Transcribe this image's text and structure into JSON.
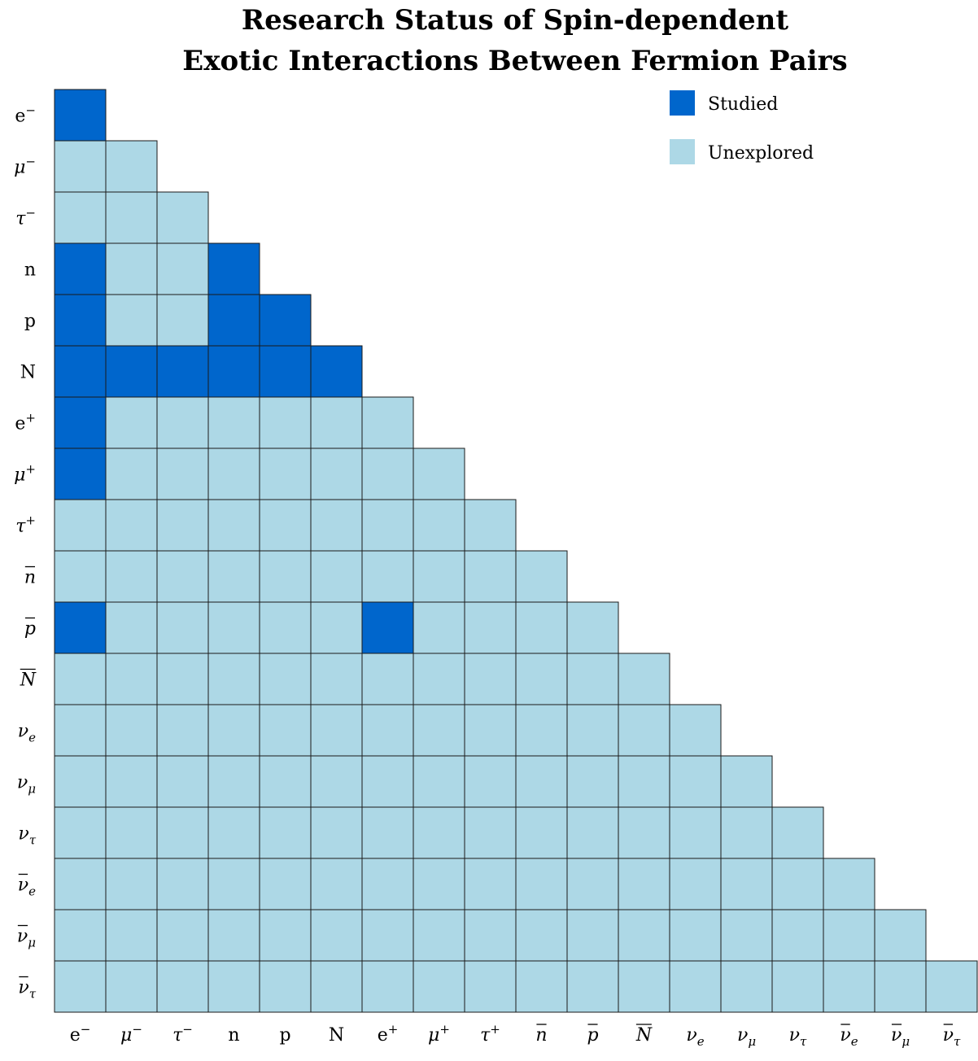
{
  "chart_data": {
    "type": "heatmap",
    "title": [
      "Research Status of Spin-dependent",
      "Exotic Interactions Between Fermion Pairs"
    ],
    "labels": [
      {
        "base": "e",
        "sup": "−",
        "italic": false,
        "bar": false
      },
      {
        "base": "μ",
        "sup": "−",
        "italic": true,
        "bar": false
      },
      {
        "base": "τ",
        "sup": "−",
        "italic": true,
        "bar": false
      },
      {
        "base": "n",
        "italic": false,
        "bar": false
      },
      {
        "base": "p",
        "italic": false,
        "bar": false
      },
      {
        "base": "N",
        "italic": false,
        "bar": false
      },
      {
        "base": "e",
        "sup": "+",
        "italic": false,
        "bar": false
      },
      {
        "base": "μ",
        "sup": "+",
        "italic": true,
        "bar": false
      },
      {
        "base": "τ",
        "sup": "+",
        "italic": true,
        "bar": false
      },
      {
        "base": "n",
        "italic": true,
        "bar": true
      },
      {
        "base": "p",
        "italic": true,
        "bar": true
      },
      {
        "base": "N",
        "italic": true,
        "bar": true
      },
      {
        "base": "ν",
        "sub": "e",
        "italic": true,
        "bar": false
      },
      {
        "base": "ν",
        "sub": "μ",
        "italic": true,
        "bar": false
      },
      {
        "base": "ν",
        "sub": "τ",
        "italic": true,
        "bar": false
      },
      {
        "base": "ν",
        "sub": "e",
        "italic": true,
        "bar": true
      },
      {
        "base": "ν",
        "sub": "μ",
        "italic": true,
        "bar": true
      },
      {
        "base": "ν",
        "sub": "τ",
        "italic": true,
        "bar": true
      }
    ],
    "studied": [
      [
        0,
        0
      ],
      [
        3,
        0
      ],
      [
        3,
        3
      ],
      [
        4,
        0
      ],
      [
        4,
        3
      ],
      [
        4,
        4
      ],
      [
        5,
        0
      ],
      [
        5,
        1
      ],
      [
        5,
        2
      ],
      [
        5,
        3
      ],
      [
        5,
        4
      ],
      [
        5,
        5
      ],
      [
        6,
        0
      ],
      [
        7,
        0
      ],
      [
        10,
        0
      ],
      [
        10,
        6
      ]
    ],
    "colors": {
      "Studied": "#0066cc",
      "Unexplored": "#add8e6"
    },
    "legend": {
      "position": "top-right",
      "items": [
        "Studied",
        "Unexplored"
      ]
    },
    "grid": "lower-triangle"
  }
}
